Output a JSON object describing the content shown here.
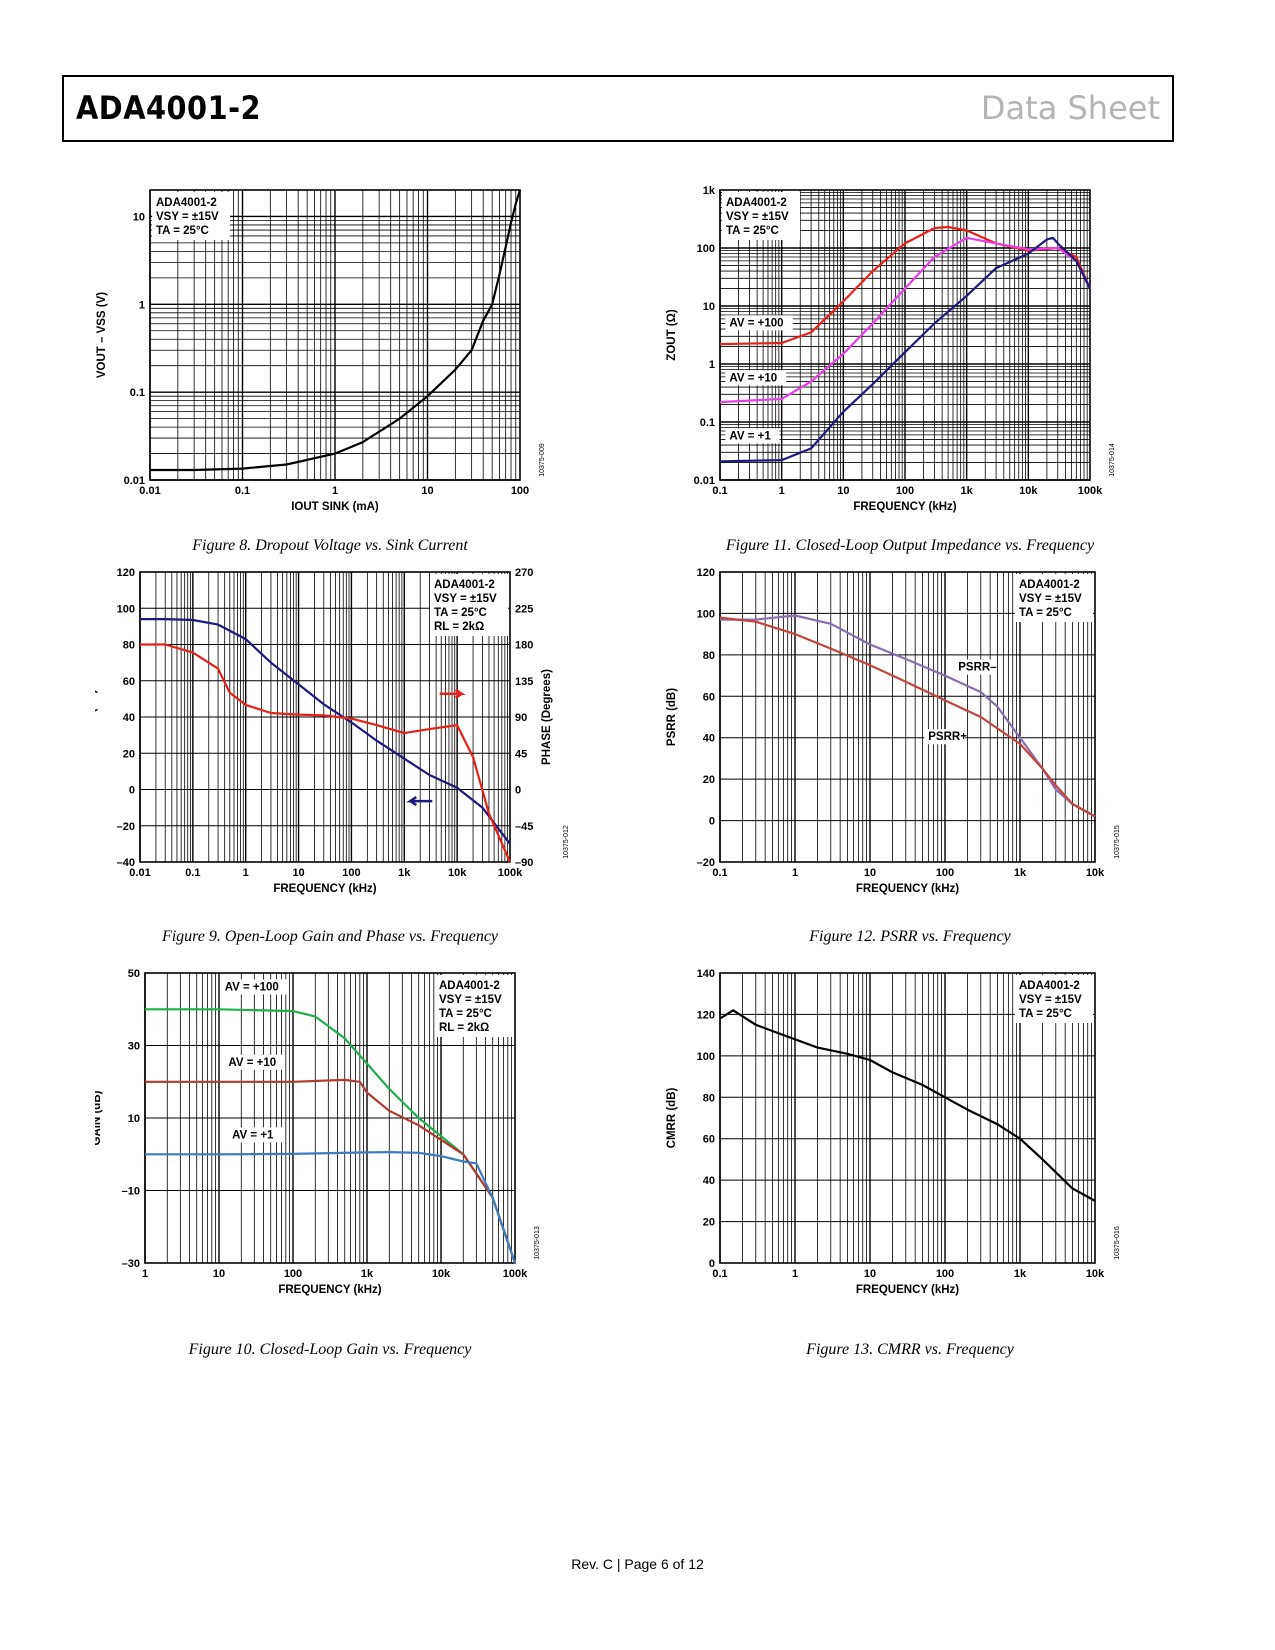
{
  "header": {
    "title": "ADA4001-2",
    "doc_type": "Data Sheet"
  },
  "footer": {
    "page": "Rev. C | Page 6 of 12"
  },
  "colors": {
    "black": "#000000",
    "red": "#e8201a",
    "magenta": "#e83de8",
    "navy": "#1c1a7c",
    "green": "#1fae4a",
    "darkred": "#b03a30",
    "blue": "#3e7ac2",
    "purple": "#8a6db0",
    "brick": "#c2453d"
  },
  "chart_data": [
    {
      "id": "fig8",
      "type": "line",
      "caption": "Figure 8. Dropout Voltage vs. Sink Current",
      "xlabel": "IOUT SINK (mA)",
      "ylabel": "VOUT – VSS (V)",
      "xscale": "log",
      "yscale": "log",
      "xlim": [
        0.01,
        100
      ],
      "ylim": [
        0.01,
        20
      ],
      "xticks": [
        {
          "v": 0.01,
          "t": "0.01"
        },
        {
          "v": 0.1,
          "t": "0.1"
        },
        {
          "v": 1,
          "t": "1"
        },
        {
          "v": 10,
          "t": "10"
        },
        {
          "v": 100,
          "t": "100"
        }
      ],
      "yticks": [
        {
          "v": 0.01,
          "t": "0.01"
        },
        {
          "v": 0.1,
          "t": "0.1"
        },
        {
          "v": 1,
          "t": "1"
        },
        {
          "v": 10,
          "t": "10"
        }
      ],
      "annotation": [
        "ADA4001-2",
        "VSY = ±15V",
        "TA = 25°C"
      ],
      "code": "10375-009",
      "series": [
        {
          "name": "Dropout",
          "color": "#000000",
          "x": [
            0.01,
            0.03,
            0.1,
            0.3,
            1,
            2,
            5,
            10,
            20,
            30,
            40,
            50,
            60,
            70,
            80,
            90,
            100
          ],
          "y": [
            0.013,
            0.013,
            0.0135,
            0.015,
            0.02,
            0.027,
            0.05,
            0.09,
            0.18,
            0.3,
            0.65,
            1.0,
            2.2,
            4.5,
            8.5,
            14,
            20
          ]
        }
      ]
    },
    {
      "id": "fig11",
      "type": "line",
      "caption": "Figure 11. Closed-Loop Output Impedance vs. Frequency",
      "xlabel": "FREQUENCY (kHz)",
      "ylabel": "ZOUT (Ω)",
      "xscale": "log",
      "yscale": "log",
      "xlim": [
        0.1,
        100000
      ],
      "ylim": [
        0.01,
        1000
      ],
      "xticks": [
        {
          "v": 0.1,
          "t": "0.1"
        },
        {
          "v": 1,
          "t": "1"
        },
        {
          "v": 10,
          "t": "10"
        },
        {
          "v": 100,
          "t": "100"
        },
        {
          "v": 1000,
          "t": "1k"
        },
        {
          "v": 10000,
          "t": "10k"
        },
        {
          "v": 100000,
          "t": "100k"
        }
      ],
      "yticks": [
        {
          "v": 0.01,
          "t": "0.01"
        },
        {
          "v": 0.1,
          "t": "0.1"
        },
        {
          "v": 1,
          "t": "1"
        },
        {
          "v": 10,
          "t": "10"
        },
        {
          "v": 100,
          "t": "100"
        },
        {
          "v": 1000,
          "t": "1k"
        }
      ],
      "annotation": [
        "ADA4001-2",
        "VSY = ±15V",
        "TA = 25°C"
      ],
      "labels": [
        "AV = +100",
        "AV = +10",
        "AV = +1"
      ],
      "code": "10375-014",
      "series": [
        {
          "name": "AV = +100",
          "color": "#e8201a",
          "x": [
            0.1,
            1,
            3,
            10,
            30,
            100,
            300,
            500,
            1000,
            3000,
            10000,
            30000,
            60000,
            100000
          ],
          "y": [
            2.2,
            2.3,
            3.5,
            12,
            40,
            120,
            220,
            230,
            200,
            120,
            90,
            100,
            70,
            20
          ]
        },
        {
          "name": "AV = +10",
          "color": "#e83de8",
          "x": [
            0.1,
            1,
            3,
            10,
            30,
            100,
            300,
            1000,
            3000,
            10000,
            30000,
            60000,
            100000
          ],
          "y": [
            0.22,
            0.25,
            0.5,
            1.5,
            5,
            20,
            70,
            150,
            120,
            95,
            100,
            60,
            20
          ]
        },
        {
          "name": "AV = +1",
          "color": "#1c1a7c",
          "x": [
            0.1,
            1,
            3,
            10,
            30,
            100,
            300,
            1000,
            3000,
            10000,
            20000,
            25000,
            30000,
            60000,
            100000
          ],
          "y": [
            0.021,
            0.022,
            0.035,
            0.15,
            0.45,
            1.6,
            5,
            15,
            45,
            80,
            140,
            150,
            120,
            60,
            20
          ]
        }
      ]
    },
    {
      "id": "fig9",
      "type": "line",
      "caption": "Figure 9. Open-Loop Gain and Phase vs. Frequency",
      "xlabel": "FREQUENCY (kHz)",
      "ylabel": "GAIN (dB)",
      "y2label": "PHASE (Degrees)",
      "xscale": "log",
      "yscale": "linear",
      "xlim": [
        0.01,
        100000
      ],
      "ylim": [
        -40,
        120
      ],
      "y2lim": [
        -90,
        270
      ],
      "xticks": [
        {
          "v": 0.01,
          "t": "0.01"
        },
        {
          "v": 0.1,
          "t": "0.1"
        },
        {
          "v": 1,
          "t": "1"
        },
        {
          "v": 10,
          "t": "10"
        },
        {
          "v": 100,
          "t": "100"
        },
        {
          "v": 1000,
          "t": "1k"
        },
        {
          "v": 10000,
          "t": "10k"
        },
        {
          "v": 100000,
          "t": "100k"
        }
      ],
      "yticks": [
        {
          "v": -40,
          "t": "–40"
        },
        {
          "v": -20,
          "t": "–20"
        },
        {
          "v": 0,
          "t": "0"
        },
        {
          "v": 20,
          "t": "20"
        },
        {
          "v": 40,
          "t": "40"
        },
        {
          "v": 60,
          "t": "60"
        },
        {
          "v": 80,
          "t": "80"
        },
        {
          "v": 100,
          "t": "100"
        },
        {
          "v": 120,
          "t": "120"
        }
      ],
      "y2ticks": [
        {
          "v": -90,
          "t": "–90"
        },
        {
          "v": -45,
          "t": "–45"
        },
        {
          "v": 0,
          "t": "0"
        },
        {
          "v": 45,
          "t": "45"
        },
        {
          "v": 90,
          "t": "90"
        },
        {
          "v": 135,
          "t": "135"
        },
        {
          "v": 180,
          "t": "180"
        },
        {
          "v": 225,
          "t": "225"
        },
        {
          "v": 270,
          "t": "270"
        }
      ],
      "annotation": [
        "ADA4001-2",
        "VSY = ±15V",
        "TA = 25°C",
        "RL = 2kΩ"
      ],
      "code": "10375-012",
      "series": [
        {
          "name": "Gain",
          "color": "#1c1a7c",
          "axis": "left",
          "x": [
            0.01,
            0.03,
            0.1,
            0.3,
            1,
            3,
            10,
            30,
            100,
            300,
            1000,
            3000,
            10000,
            30000,
            100000
          ],
          "y": [
            94,
            94,
            93.5,
            91,
            83,
            70,
            58,
            47,
            37,
            27,
            17,
            8,
            1,
            -10,
            -30
          ]
        },
        {
          "name": "Phase",
          "color": "#e8201a",
          "axis": "right",
          "x": [
            0.01,
            0.03,
            0.1,
            0.3,
            0.5,
            1,
            3,
            10,
            30,
            100,
            300,
            1000,
            3000,
            10000,
            20000,
            40000,
            100000
          ],
          "y": [
            180,
            180,
            170,
            150,
            120,
            105,
            95,
            93,
            92,
            88,
            80,
            70,
            75,
            80,
            40,
            -30,
            -90
          ]
        }
      ]
    },
    {
      "id": "fig12",
      "type": "line",
      "caption": "Figure 12. PSRR vs. Frequency",
      "xlabel": "FREQUENCY (kHz)",
      "ylabel": "PSRR (dB)",
      "xscale": "log",
      "yscale": "linear",
      "xlim": [
        0.1,
        10000
      ],
      "ylim": [
        -20,
        120
      ],
      "xticks": [
        {
          "v": 0.1,
          "t": "0.1"
        },
        {
          "v": 1,
          "t": "1"
        },
        {
          "v": 10,
          "t": "10"
        },
        {
          "v": 100,
          "t": "100"
        },
        {
          "v": 1000,
          "t": "1k"
        },
        {
          "v": 10000,
          "t": "10k"
        }
      ],
      "yticks": [
        {
          "v": -20,
          "t": "–20"
        },
        {
          "v": 0,
          "t": "0"
        },
        {
          "v": 20,
          "t": "20"
        },
        {
          "v": 40,
          "t": "40"
        },
        {
          "v": 60,
          "t": "60"
        },
        {
          "v": 80,
          "t": "80"
        },
        {
          "v": 100,
          "t": "100"
        },
        {
          "v": 120,
          "t": "120"
        }
      ],
      "annotation": [
        "ADA4001-2",
        "VSY = ±15V",
        "TA = 25°C"
      ],
      "labels": [
        "PSRR–",
        "PSRR+"
      ],
      "code": "10375-015",
      "series": [
        {
          "name": "PSRR–",
          "color": "#8a6db0",
          "x": [
            0.1,
            0.3,
            1,
            3,
            10,
            30,
            100,
            300,
            500,
            1000,
            2000,
            3000,
            5000,
            10000
          ],
          "y": [
            97,
            97,
            99,
            95,
            85,
            78,
            70,
            62,
            55,
            40,
            25,
            15,
            8,
            2
          ]
        },
        {
          "name": "PSRR+",
          "color": "#c2453d",
          "x": [
            0.1,
            0.3,
            1,
            3,
            10,
            30,
            100,
            300,
            1000,
            2000,
            3000,
            5000,
            10000
          ],
          "y": [
            98,
            96,
            90,
            83,
            75,
            67,
            58,
            50,
            37,
            25,
            17,
            8,
            2
          ]
        }
      ]
    },
    {
      "id": "fig10",
      "type": "line",
      "caption": "Figure 10. Closed-Loop Gain vs. Frequency",
      "xlabel": "FREQUENCY (kHz)",
      "ylabel": "GAIN (dB)",
      "xscale": "log",
      "yscale": "linear",
      "xlim": [
        1,
        100000
      ],
      "ylim": [
        -30,
        50
      ],
      "xticks": [
        {
          "v": 1,
          "t": "1"
        },
        {
          "v": 10,
          "t": "10"
        },
        {
          "v": 100,
          "t": "100"
        },
        {
          "v": 1000,
          "t": "1k"
        },
        {
          "v": 10000,
          "t": "10k"
        },
        {
          "v": 100000,
          "t": "100k"
        }
      ],
      "yticks": [
        {
          "v": -30,
          "t": "–30"
        },
        {
          "v": -10,
          "t": "–10"
        },
        {
          "v": 10,
          "t": "10"
        },
        {
          "v": 30,
          "t": "30"
        },
        {
          "v": 50,
          "t": "50"
        }
      ],
      "annotation": [
        "ADA4001-2",
        "VSY = ±15V",
        "TA = 25°C",
        "RL = 2kΩ"
      ],
      "labels": [
        "AV = +100",
        "AV = +10",
        "AV = +1"
      ],
      "code": "10375-013",
      "series": [
        {
          "name": "AV = +100",
          "color": "#1fae4a",
          "x": [
            1,
            10,
            100,
            200,
            500,
            1000,
            2000,
            5000,
            10000,
            20000,
            50000,
            100000
          ],
          "y": [
            40,
            40,
            39.5,
            38,
            32,
            25,
            18,
            10,
            5,
            0,
            -12,
            -30
          ]
        },
        {
          "name": "AV = +10",
          "color": "#b03a30",
          "x": [
            1,
            10,
            100,
            500,
            800,
            1000,
            2000,
            5000,
            10000,
            20000,
            50000,
            100000
          ],
          "y": [
            20,
            20,
            20,
            20.5,
            20,
            17,
            12,
            8,
            4,
            0,
            -12,
            -30
          ]
        },
        {
          "name": "AV = +1",
          "color": "#3e7ac2",
          "x": [
            1,
            10,
            100,
            1000,
            2000,
            5000,
            10000,
            20000,
            30000,
            50000,
            100000
          ],
          "y": [
            0,
            0,
            0.1,
            0.5,
            0.6,
            0.4,
            -0.5,
            -2,
            -2.5,
            -12,
            -30
          ]
        }
      ]
    },
    {
      "id": "fig13",
      "type": "line",
      "caption": "Figure 13. CMRR vs. Frequency",
      "xlabel": "FREQUENCY (kHz)",
      "ylabel": "CMRR (dB)",
      "xscale": "log",
      "yscale": "linear",
      "xlim": [
        0.1,
        10000
      ],
      "ylim": [
        0,
        140
      ],
      "xticks": [
        {
          "v": 0.1,
          "t": "0.1"
        },
        {
          "v": 1,
          "t": "1"
        },
        {
          "v": 10,
          "t": "10"
        },
        {
          "v": 100,
          "t": "100"
        },
        {
          "v": 1000,
          "t": "1k"
        },
        {
          "v": 10000,
          "t": "10k"
        }
      ],
      "yticks": [
        {
          "v": 0,
          "t": "0"
        },
        {
          "v": 20,
          "t": "20"
        },
        {
          "v": 40,
          "t": "40"
        },
        {
          "v": 60,
          "t": "60"
        },
        {
          "v": 80,
          "t": "80"
        },
        {
          "v": 100,
          "t": "100"
        },
        {
          "v": 120,
          "t": "120"
        },
        {
          "v": 140,
          "t": "140"
        }
      ],
      "annotation": [
        "ADA4001-2",
        "VSY = ±15V",
        "TA = 25°C"
      ],
      "code": "10375-016",
      "series": [
        {
          "name": "CMRR",
          "color": "#000000",
          "x": [
            0.1,
            0.15,
            0.3,
            0.5,
            1,
            2,
            5,
            10,
            20,
            50,
            100,
            200,
            500,
            1000,
            2000,
            5000,
            10000
          ],
          "y": [
            118,
            122,
            115,
            112,
            108,
            104,
            101,
            98,
            92,
            86,
            80,
            74,
            67,
            60,
            50,
            36,
            30
          ]
        }
      ]
    }
  ]
}
